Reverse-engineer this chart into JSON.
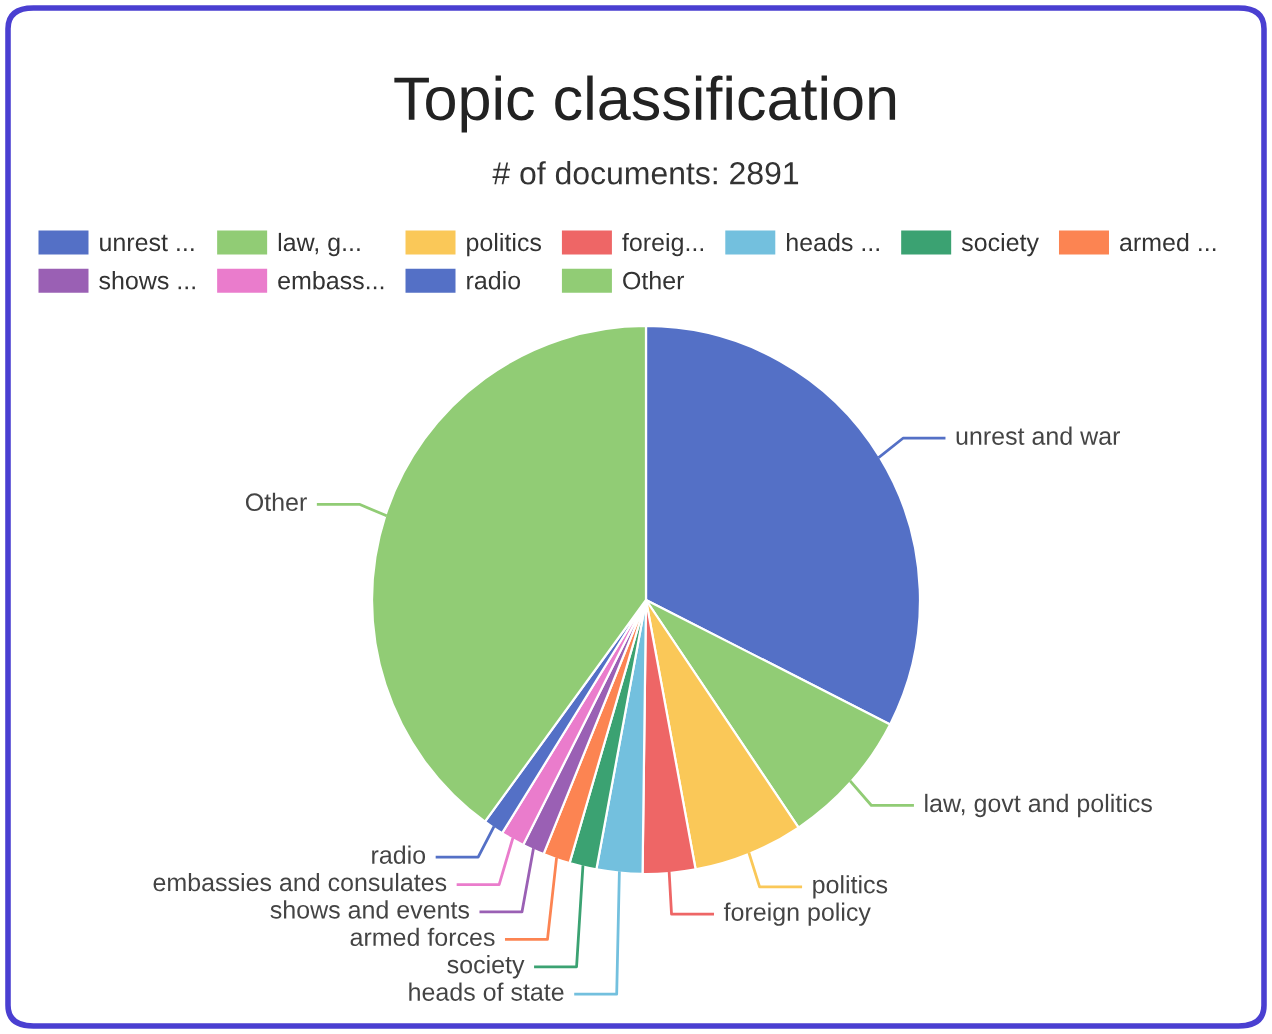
{
  "chart_data": {
    "type": "pie",
    "title": "Topic classification",
    "subtitle": "# of documents: 2891",
    "categories": [
      "unrest ...",
      "law, g...",
      "politics",
      "foreig...",
      "heads ...",
      "society",
      "armed ...",
      "shows ...",
      "embass...",
      "radio",
      "Other"
    ],
    "values": [
      32.5,
      8.1,
      6.5,
      3.1,
      2.7,
      1.6,
      1.6,
      1.3,
      1.4,
      1.2,
      40.0
    ],
    "colors": [
      "#5470c6",
      "#91cc75",
      "#fac858",
      "#ee6666",
      "#73c0de",
      "#3ba272",
      "#fc8452",
      "#9a60b4",
      "#ea7ccc",
      "#5470c6",
      "#91cc75"
    ],
    "annotations": [
      {
        "text": "unrest and war",
        "x": "unrest ..."
      },
      {
        "text": "law, govt and politics",
        "x": "law, g..."
      },
      {
        "text": "politics",
        "x": "politics"
      },
      {
        "text": "foreign policy",
        "x": "foreig..."
      },
      {
        "text": "heads of state",
        "x": "heads ..."
      },
      {
        "text": "society",
        "x": "society"
      },
      {
        "text": "armed forces",
        "x": "armed ..."
      },
      {
        "text": "shows and events",
        "x": "shows ..."
      },
      {
        "text": "embassies and consulates",
        "x": "embass..."
      },
      {
        "text": "radio",
        "x": "radio"
      },
      {
        "text": "Other",
        "x": "Other"
      }
    ],
    "legend": "top"
  }
}
